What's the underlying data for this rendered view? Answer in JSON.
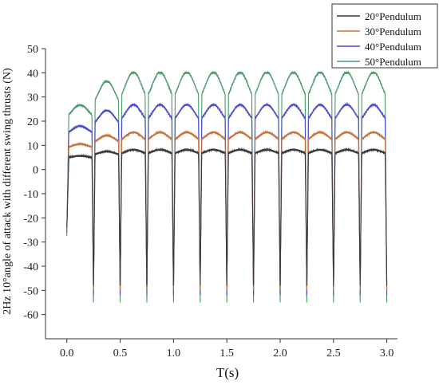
{
  "chart_data": {
    "type": "line",
    "xlabel": "T(s)",
    "ylabel": "2Hz 10°angle of attack with different swing thrusts (N)",
    "xlim": [
      -0.2,
      3.1
    ],
    "ylim": [
      -70,
      50
    ],
    "xticks": [
      "0.0",
      "0.5",
      "1.0",
      "1.5",
      "2.0",
      "2.5",
      "3.0"
    ],
    "xtick_values": [
      0,
      0.5,
      1.0,
      1.5,
      2.0,
      2.5,
      3.0
    ],
    "yticks": [
      "50",
      "40",
      "30",
      "20",
      "10",
      "0",
      "-10",
      "-20",
      "-30",
      "-40",
      "-50",
      "-60"
    ],
    "ytick_values": [
      50,
      40,
      30,
      20,
      10,
      0,
      -10,
      -20,
      -30,
      -40,
      -50,
      -60
    ],
    "legend_position": "top-right",
    "grid": false,
    "period_s": 0.25,
    "series": [
      {
        "name": "20°Pendulum",
        "color": "#3a3a3a",
        "plateau": 8,
        "peak_dip": 6,
        "trough": -48
      },
      {
        "name": "30°Pendulum",
        "color": "#c8743f",
        "plateau": 15,
        "peak_dip": 11,
        "trough": -50
      },
      {
        "name": "40°Pendulum",
        "color": "#4a4ad0",
        "plateau": 26,
        "peak_dip": 18,
        "trough": -52
      },
      {
        "name": "50°Pendulum",
        "color": "#4a9a6a",
        "plateau": 39,
        "peak_dip": 26,
        "trough": -55
      }
    ]
  }
}
